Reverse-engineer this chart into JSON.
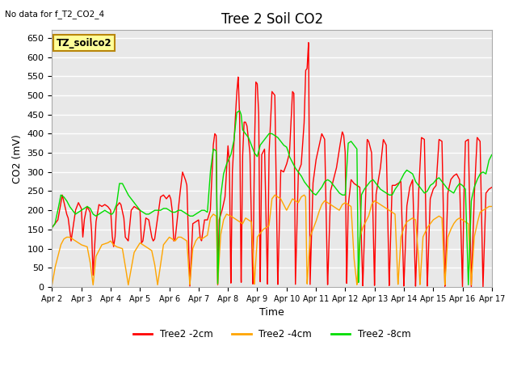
{
  "title": "Tree 2 Soil CO2",
  "subtitle": "No data for f_T2_CO2_4",
  "xlabel": "Time",
  "ylabel": "CO2 (mV)",
  "ylim": [
    0,
    670
  ],
  "yticks": [
    0,
    50,
    100,
    150,
    200,
    250,
    300,
    350,
    400,
    450,
    500,
    550,
    600,
    650
  ],
  "xtick_labels": [
    "Apr 2",
    "Apr 3",
    "Apr 4",
    "Apr 5",
    "Apr 6",
    "Apr 7",
    "Apr 8",
    "Apr 9",
    "Apr 10",
    "Apr 11",
    "Apr 12",
    "Apr 13",
    "Apr 14",
    "Apr 15",
    "Apr 16",
    "Apr 17"
  ],
  "legend_box_text": "TZ_soilco2",
  "legend_box_color": "#FFFF99",
  "legend_box_edge": "#B8860B",
  "colors": {
    "red": "#FF0000",
    "orange": "#FFA500",
    "green": "#00DD00"
  },
  "legend_labels": [
    "Tree2 -2cm",
    "Tree2 -4cm",
    "Tree2 -8cm"
  ],
  "background_color": "#E8E8E8",
  "grid_color": "#FFFFFF",
  "title_fontsize": 12,
  "label_fontsize": 9,
  "tick_fontsize": 8
}
